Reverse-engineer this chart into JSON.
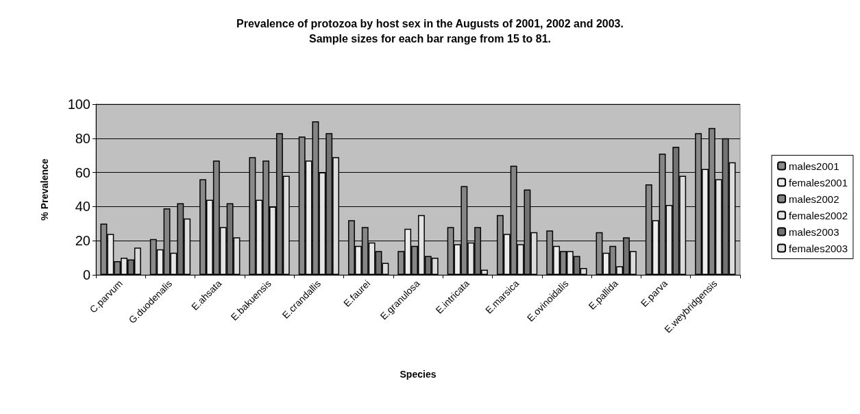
{
  "chart_data": {
    "type": "bar",
    "title": "Prevalence of protozoa by host sex in the Augusts of 2001, 2002 and 2003.\nSample sizes for each bar range from 15 to 81.",
    "xlabel": "Species",
    "ylabel": "% Prevalence",
    "categories": [
      "C.parvum",
      "G.duodenalis",
      "E.ahsata",
      "E.bakuensis",
      "E.crandallis",
      "E.faurei",
      "E.granulosa",
      "E.intricata",
      "E.marsica",
      "E.ovinoidalis",
      "E.pallida",
      "E.parva",
      "E.weybridgensis"
    ],
    "series": [
      {
        "name": "males2001",
        "color": "#8a8a8a",
        "values": [
          30,
          21,
          56,
          69,
          81,
          32,
          14,
          28,
          35,
          26,
          25,
          53,
          83
        ]
      },
      {
        "name": "females2001",
        "color": "#ececec",
        "values": [
          24,
          15,
          44,
          44,
          67,
          17,
          27,
          18,
          24,
          17,
          13,
          32,
          62
        ]
      },
      {
        "name": "males2002",
        "color": "#858585",
        "values": [
          8,
          39,
          67,
          67,
          90,
          28,
          17,
          52,
          64,
          14,
          17,
          71,
          86
        ]
      },
      {
        "name": "females2002",
        "color": "#e4e4e4",
        "values": [
          10,
          13,
          28,
          40,
          60,
          19,
          35,
          19,
          18,
          14,
          5,
          41,
          56
        ]
      },
      {
        "name": "males2003",
        "color": "#737373",
        "values": [
          9,
          42,
          42,
          83,
          83,
          14,
          11,
          28,
          50,
          11,
          22,
          75,
          80
        ]
      },
      {
        "name": "females2003",
        "color": "#dcdcdc",
        "values": [
          16,
          33,
          22,
          58,
          69,
          7,
          10,
          3,
          25,
          4,
          14,
          58,
          66
        ]
      }
    ],
    "ylim": [
      0,
      100
    ],
    "yticks": [
      0,
      20,
      40,
      60,
      80,
      100
    ],
    "grid": "y",
    "legend": "right"
  }
}
